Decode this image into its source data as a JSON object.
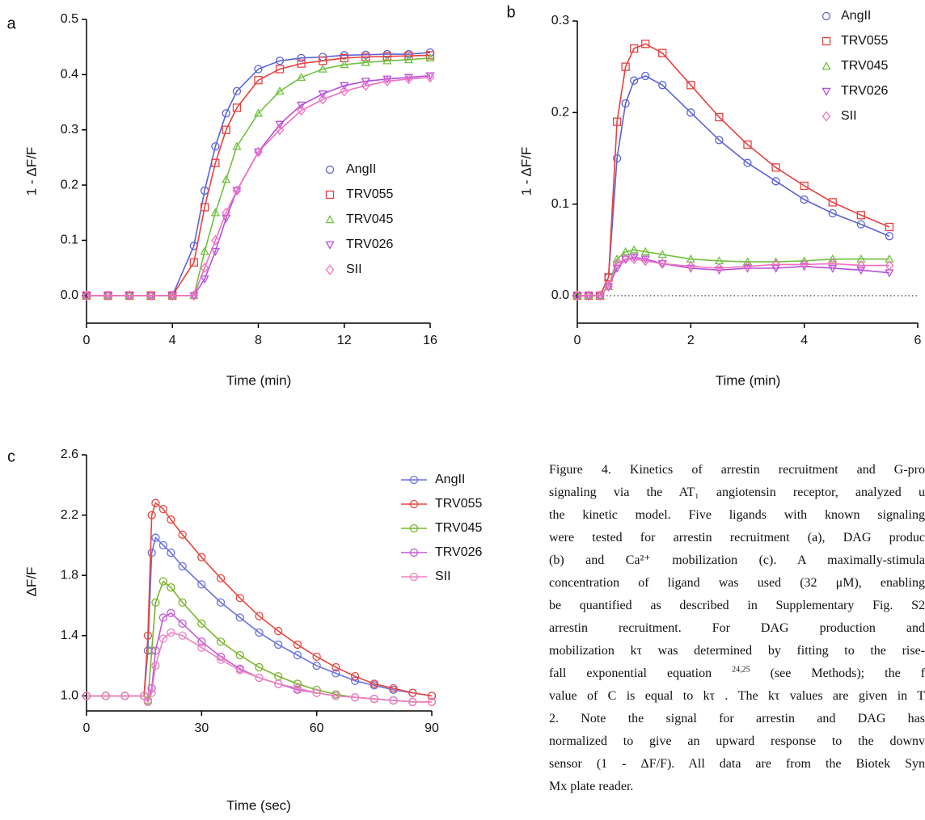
{
  "chart_data": [
    {
      "type": "line",
      "panel": "a",
      "xlabel": "Time (min)",
      "ylabel": "1 - ΔF/F",
      "xlim": [
        0,
        16
      ],
      "ylim": [
        -0.05,
        0.5
      ],
      "xticks": [
        0,
        4,
        8,
        12,
        16
      ],
      "yticks": [
        {
          "value": 0,
          "label": "0.0"
        },
        0.1,
        0.2,
        0.3,
        0.4,
        0.5
      ],
      "x": [
        0,
        1,
        2,
        3,
        4,
        5,
        5.5,
        6,
        6.5,
        7,
        8,
        9,
        10,
        11,
        12,
        13,
        14,
        15,
        16
      ],
      "series": [
        {
          "name": "AngII",
          "color": "#5b63d6",
          "marker": "circle",
          "values": [
            0,
            0,
            0,
            0,
            0,
            0.09,
            0.19,
            0.27,
            0.33,
            0.37,
            0.41,
            0.425,
            0.43,
            0.432,
            0.435,
            0.436,
            0.437,
            0.437,
            0.44
          ]
        },
        {
          "name": "TRV055",
          "color": "#e84040",
          "marker": "square",
          "values": [
            0,
            0,
            0,
            0,
            0,
            0.06,
            0.16,
            0.24,
            0.3,
            0.34,
            0.39,
            0.41,
            0.42,
            0.425,
            0.43,
            0.432,
            0.433,
            0.434,
            0.435
          ]
        },
        {
          "name": "TRV045",
          "color": "#6fc13e",
          "marker": "triangle-up",
          "values": [
            0,
            0,
            0,
            0,
            0,
            0,
            0.08,
            0.15,
            0.21,
            0.27,
            0.33,
            0.37,
            0.395,
            0.41,
            0.418,
            0.422,
            0.425,
            0.427,
            0.43
          ]
        },
        {
          "name": "TRV026",
          "color": "#b34ee0",
          "marker": "triangle-down",
          "values": [
            0,
            0,
            0,
            0,
            0,
            0,
            0.03,
            0.08,
            0.14,
            0.19,
            0.26,
            0.31,
            0.345,
            0.365,
            0.38,
            0.388,
            0.392,
            0.395,
            0.398
          ]
        },
        {
          "name": "SII",
          "color": "#f06fc0",
          "marker": "diamond",
          "values": [
            0,
            0,
            0,
            0,
            0,
            0,
            0.05,
            0.1,
            0.15,
            0.19,
            0.26,
            0.3,
            0.335,
            0.355,
            0.37,
            0.38,
            0.388,
            0.392,
            0.395
          ]
        }
      ]
    },
    {
      "type": "line",
      "panel": "b",
      "xlabel": "Time (min)",
      "ylabel": "1 - ΔF/F",
      "xlim": [
        0,
        6
      ],
      "ylim": [
        -0.03,
        0.3
      ],
      "xticks": [
        0,
        2,
        4,
        6
      ],
      "yticks": [
        {
          "value": 0,
          "label": "0.0"
        },
        0.1,
        0.2,
        0.3
      ],
      "zero_line": true,
      "x": [
        0,
        0.2,
        0.4,
        0.55,
        0.7,
        0.85,
        1,
        1.2,
        1.5,
        2,
        2.5,
        3,
        3.5,
        4,
        4.5,
        5,
        5.5
      ],
      "series": [
        {
          "name": "AngII",
          "color": "#5b63d6",
          "marker": "circle",
          "values": [
            0,
            0,
            0,
            0.02,
            0.15,
            0.21,
            0.235,
            0.24,
            0.23,
            0.2,
            0.17,
            0.145,
            0.125,
            0.105,
            0.09,
            0.078,
            0.065
          ]
        },
        {
          "name": "TRV055",
          "color": "#e84040",
          "marker": "square",
          "values": [
            0,
            0,
            0,
            0.02,
            0.19,
            0.25,
            0.27,
            0.275,
            0.265,
            0.23,
            0.195,
            0.165,
            0.14,
            0.12,
            0.102,
            0.088,
            0.075
          ]
        },
        {
          "name": "TRV045",
          "color": "#6fc13e",
          "marker": "triangle-up",
          "values": [
            0,
            0,
            0,
            0.01,
            0.04,
            0.048,
            0.05,
            0.048,
            0.045,
            0.04,
            0.038,
            0.037,
            0.037,
            0.038,
            0.04,
            0.04,
            0.04
          ]
        },
        {
          "name": "TRV026",
          "color": "#b34ee0",
          "marker": "triangle-down",
          "values": [
            0,
            0,
            0,
            0.01,
            0.03,
            0.04,
            0.042,
            0.04,
            0.035,
            0.03,
            0.028,
            0.03,
            0.03,
            0.032,
            0.03,
            0.028,
            0.025
          ]
        },
        {
          "name": "SII",
          "color": "#f06fc0",
          "marker": "diamond",
          "values": [
            0,
            0,
            0,
            0.01,
            0.035,
            0.04,
            0.04,
            0.038,
            0.035,
            0.032,
            0.03,
            0.032,
            0.034,
            0.034,
            0.035,
            0.033,
            0.033
          ]
        }
      ]
    },
    {
      "type": "line",
      "panel": "c",
      "xlabel": "Time (sec)",
      "ylabel": "ΔF/F",
      "xlim": [
        0,
        90
      ],
      "ylim": [
        0.9,
        2.6
      ],
      "xticks": [
        0,
        30,
        60,
        90
      ],
      "yticks": [
        {
          "value": 1,
          "label": "1.0"
        },
        1.4,
        1.8,
        2.2,
        2.6
      ],
      "x": [
        0,
        5,
        10,
        15,
        16,
        17,
        18,
        20,
        22,
        25,
        30,
        35,
        40,
        45,
        50,
        55,
        60,
        65,
        70,
        75,
        80,
        85,
        90
      ],
      "series": [
        {
          "name": "AngII",
          "color": "#6a72e0",
          "marker": "circle",
          "values": [
            1,
            1,
            1,
            1,
            1.3,
            1.95,
            2.05,
            2.0,
            1.95,
            1.86,
            1.74,
            1.62,
            1.52,
            1.42,
            1.34,
            1.27,
            1.2,
            1.15,
            1.1,
            1.07,
            1.04,
            1.02,
            1.0
          ]
        },
        {
          "name": "TRV055",
          "color": "#e8453c",
          "marker": "circle",
          "values": [
            1,
            1,
            1,
            1,
            1.4,
            2.2,
            2.28,
            2.24,
            2.17,
            2.07,
            1.92,
            1.78,
            1.65,
            1.53,
            1.43,
            1.34,
            1.26,
            1.19,
            1.13,
            1.08,
            1.05,
            1.02,
            1.0
          ]
        },
        {
          "name": "TRV045",
          "color": "#77b52a",
          "marker": "circle",
          "values": [
            1,
            1,
            1,
            1,
            0.97,
            1.3,
            1.62,
            1.76,
            1.72,
            1.62,
            1.48,
            1.36,
            1.27,
            1.19,
            1.13,
            1.08,
            1.04,
            1.01,
            0.99,
            0.98,
            0.97,
            0.96,
            0.96
          ]
        },
        {
          "name": "TRV026",
          "color": "#c25ad6",
          "marker": "circle",
          "values": [
            1,
            1,
            1,
            1,
            0.96,
            1.05,
            1.3,
            1.52,
            1.55,
            1.48,
            1.36,
            1.26,
            1.18,
            1.12,
            1.08,
            1.04,
            1.02,
            1.0,
            0.99,
            0.98,
            0.97,
            0.96,
            0.96
          ]
        },
        {
          "name": "SII",
          "color": "#ee80c0",
          "marker": "circle",
          "values": [
            1,
            1,
            1,
            1,
            0.96,
            1.02,
            1.2,
            1.38,
            1.42,
            1.4,
            1.32,
            1.24,
            1.17,
            1.12,
            1.08,
            1.05,
            1.02,
            1.0,
            0.99,
            0.98,
            0.97,
            0.96,
            0.96
          ]
        }
      ]
    }
  ],
  "caption": [
    [
      "Figure 4. Kinetics of arrestin recruitment and G-pro"
    ],
    [
      "signaling via the AT₁ angiotensin receptor, analyzed u"
    ],
    [
      "the kinetic model. Five ligands with known signaling"
    ],
    [
      "were tested for arrestin recruitment (a), DAG produc"
    ],
    [
      "(b) and Ca²⁺ mobilization (c). A maximally-stimula"
    ],
    [
      "concentration of ligand was used (32 μM), enabling"
    ],
    [
      "be quantified as described in Supplementary Fig. S2"
    ],
    [
      "arrestin recruitment. For DAG production and"
    ],
    [
      "mobilization kτ was determined by fitting to the rise-"
    ],
    [
      "fall exponential equation ",
      "24,25",
      " (see Methods); the f"
    ],
    [
      "value of C is equal to kτ . The kτ values are given in T"
    ],
    [
      "2. Note the signal for arrestin and DAG has"
    ],
    [
      "normalized to give an upward response to the downv"
    ],
    [
      "sensor (1 - ΔF/F). All data are from the Biotek Syn"
    ],
    [
      "Mx plate reader."
    ]
  ]
}
